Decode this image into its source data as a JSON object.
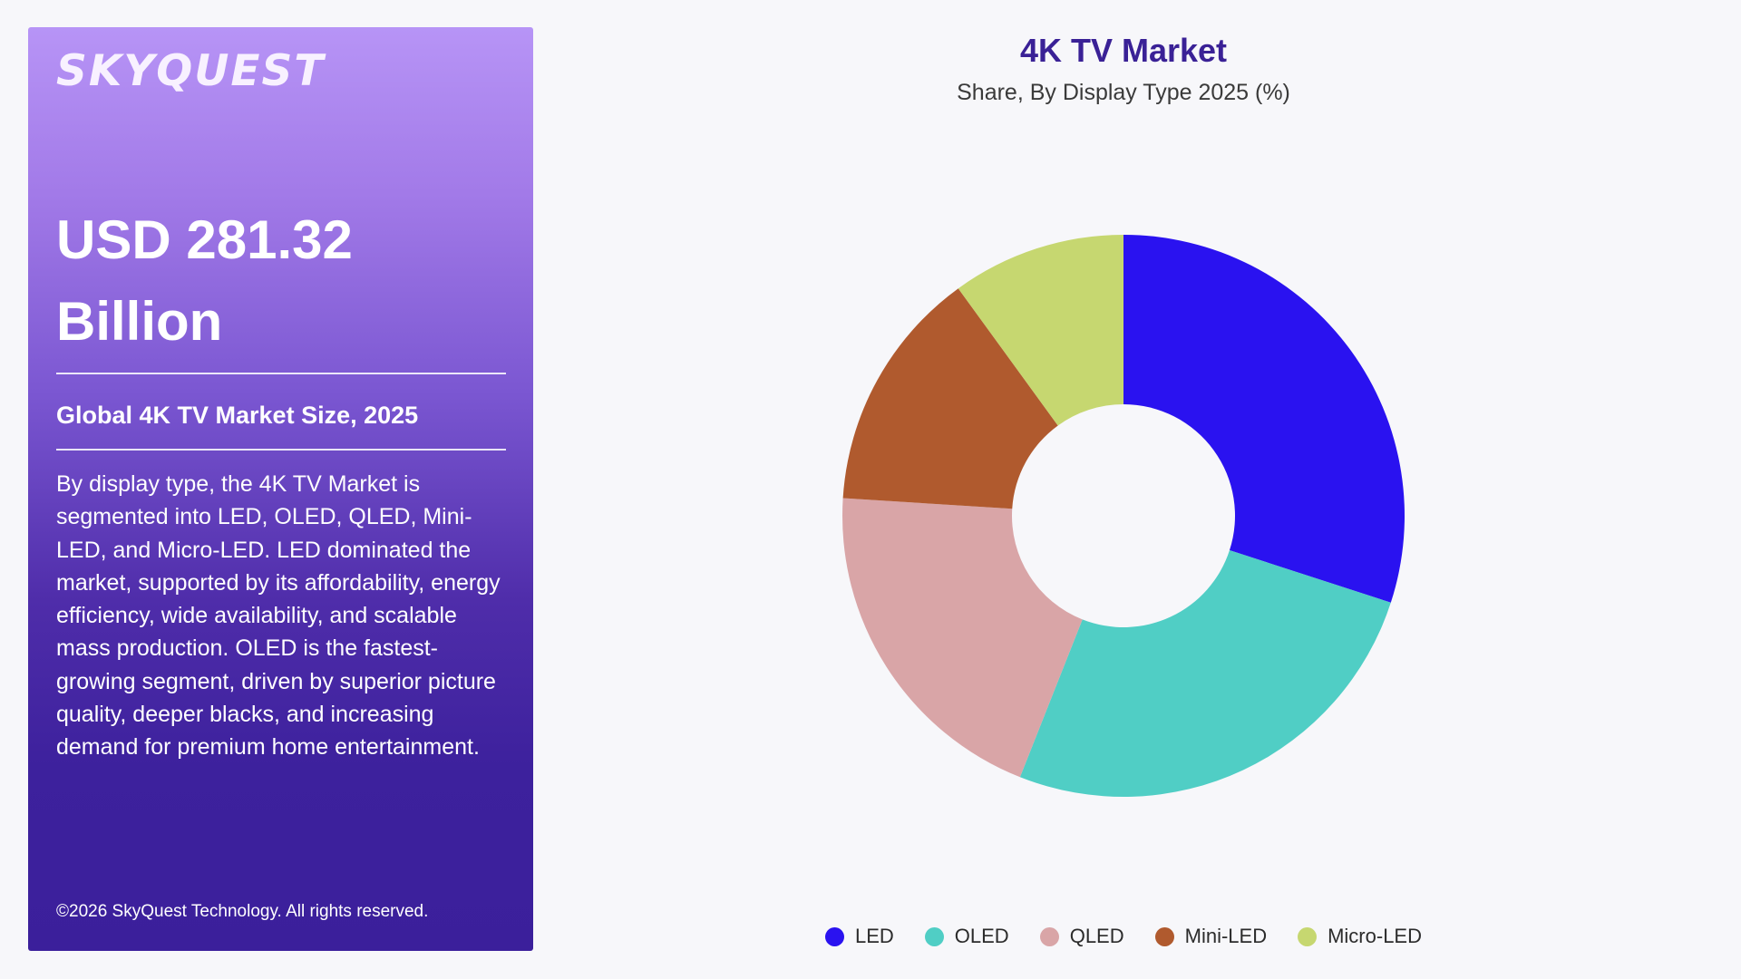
{
  "panel": {
    "logo_text": "SKYQUEST",
    "market_value_line1": "USD 281.32",
    "market_value_line2": "Billion",
    "size_label": "Global 4K TV Market Size, 2025",
    "description": "By display type, the 4K TV Market is segmented into LED, OLED, QLED, Mini-LED, and Micro-LED. LED dominated the market, supported by its affordability, energy efficiency, wide availability, and scalable mass production. OLED is the fastest-growing segment, driven by superior picture quality, deeper blacks, and increasing demand for premium home entertainment.",
    "copyright": "©2026 SkyQuest Technology. All rights reserved."
  },
  "chart_data": {
    "type": "pie",
    "title": "4K TV Market",
    "subtitle": "Share, By Display Type 2025 (%)",
    "categories": [
      "LED",
      "OLED",
      "QLED",
      "Mini-LED",
      "Micro-LED"
    ],
    "values": [
      30,
      26,
      20,
      14,
      10
    ],
    "colors": [
      "#2a12f0",
      "#50cec5",
      "#d9a5a7",
      "#b05a2e",
      "#c6d770"
    ],
    "hole": true,
    "legend_position": "bottom"
  }
}
